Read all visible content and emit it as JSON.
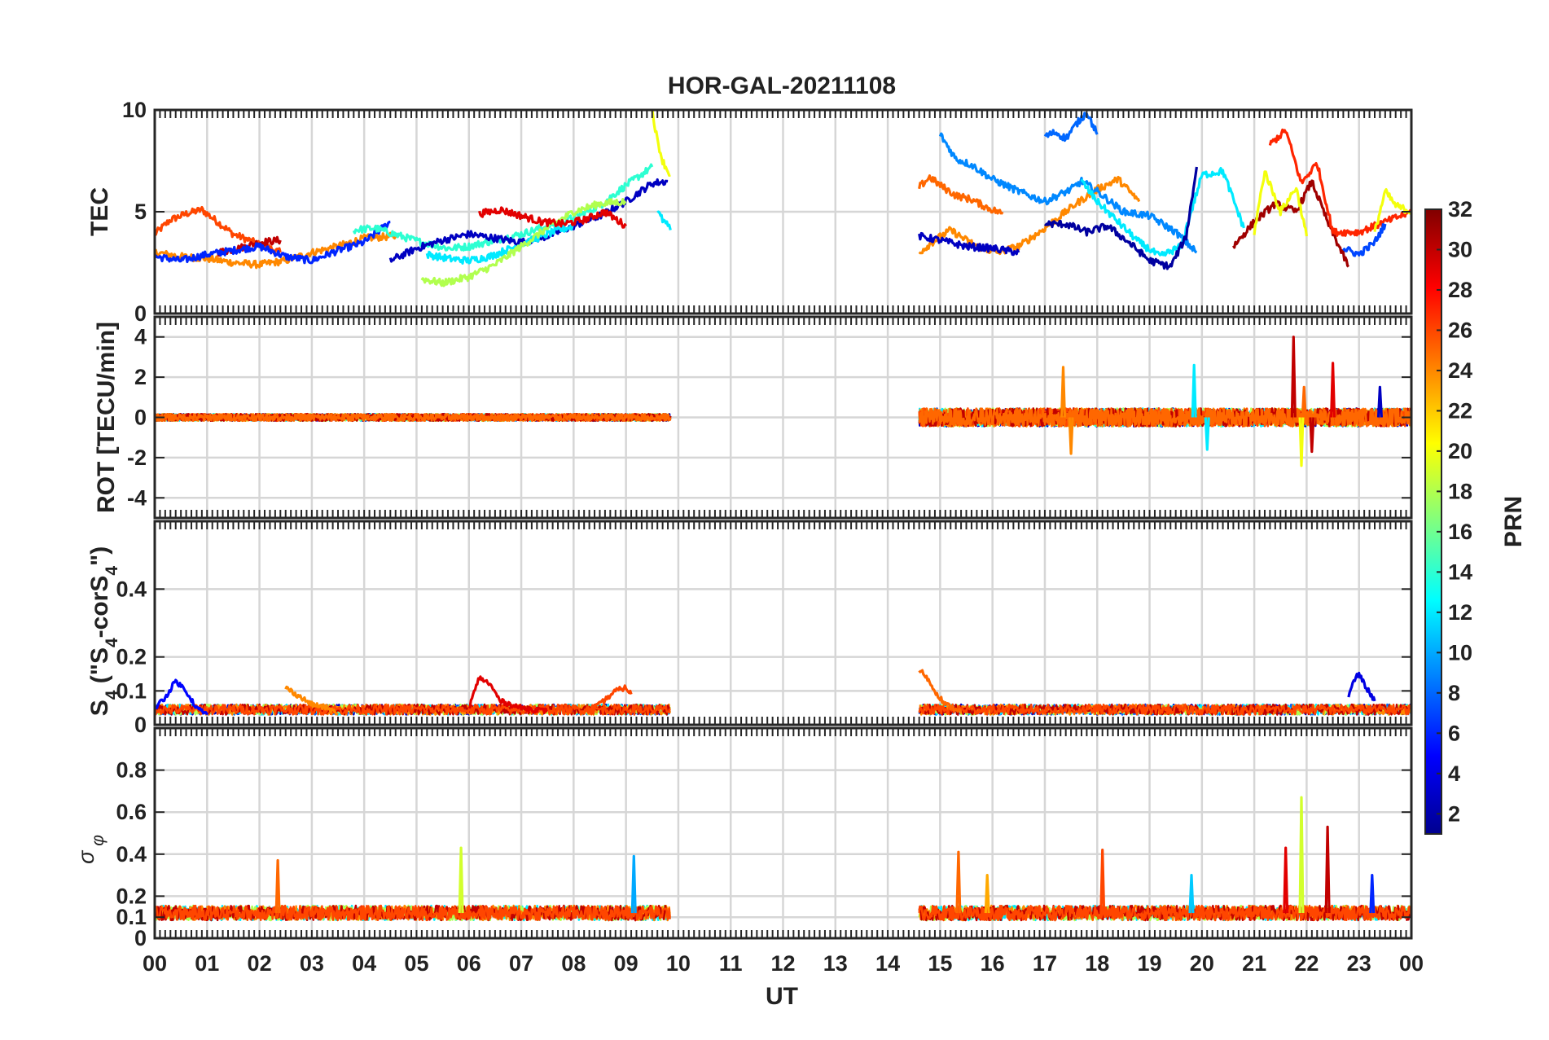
{
  "chart_data": {
    "type": "line",
    "title": "HOR-GAL-20211108",
    "xlabel": "UT",
    "x_ticks": [
      "00",
      "01",
      "02",
      "03",
      "04",
      "05",
      "06",
      "07",
      "08",
      "09",
      "10",
      "11",
      "12",
      "13",
      "14",
      "15",
      "16",
      "17",
      "18",
      "19",
      "20",
      "21",
      "22",
      "23",
      "00"
    ],
    "xlim": [
      0,
      24
    ],
    "grid": true,
    "colorbar": {
      "label": "PRN",
      "range": [
        1,
        32
      ],
      "ticks": [
        "2",
        "4",
        "6",
        "8",
        "10",
        "12",
        "14",
        "16",
        "18",
        "20",
        "22",
        "24",
        "26",
        "28",
        "30",
        "32"
      ],
      "colormap": "jet"
    },
    "panels": [
      {
        "ylabel": "TEC",
        "ylim": [
          0,
          10
        ],
        "y_ticks": [
          "0",
          "5",
          "10"
        ],
        "series": [
          {
            "prn": 26,
            "x": [
              0.0,
              0.3,
              0.6,
              0.9,
              1.2,
              1.5,
              1.8,
              2.1,
              2.4
            ],
            "y": [
              3.9,
              4.6,
              4.9,
              5.1,
              4.5,
              3.9,
              3.6,
              3.3,
              3.0
            ]
          },
          {
            "prn": 24,
            "x": [
              0.0,
              0.5,
              1.0,
              1.5,
              2.0,
              2.5,
              3.0,
              3.5,
              4.0,
              4.6
            ],
            "y": [
              3.0,
              2.8,
              2.7,
              2.5,
              2.4,
              2.6,
              3.0,
              3.3,
              3.7,
              3.8
            ]
          },
          {
            "prn": 30,
            "x": [
              1.2,
              1.6,
              2.0,
              2.4
            ],
            "y": [
              3.0,
              3.2,
              3.5,
              3.6
            ]
          },
          {
            "prn": 6,
            "x": [
              0.0,
              0.5,
              1.0,
              1.5,
              2.0,
              2.5,
              3.0,
              3.5,
              4.0,
              4.5
            ],
            "y": [
              2.8,
              2.6,
              2.9,
              3.1,
              3.3,
              2.8,
              2.6,
              3.1,
              3.5,
              4.5
            ]
          },
          {
            "prn": 14,
            "x": [
              3.8,
              4.2,
              4.7,
              5.1,
              5.6,
              6.0,
              6.5,
              7.0,
              7.5,
              8.0,
              8.5,
              9.0,
              9.5
            ],
            "y": [
              4.1,
              4.2,
              3.8,
              3.5,
              3.2,
              3.3,
              3.6,
              3.9,
              4.3,
              4.7,
              5.3,
              6.3,
              7.2
            ]
          },
          {
            "prn": 3,
            "x": [
              4.5,
              5.0,
              5.5,
              6.0,
              6.5,
              7.0,
              7.5,
              8.0,
              8.5,
              9.0,
              9.5,
              9.8
            ],
            "y": [
              2.6,
              3.2,
              3.6,
              3.9,
              3.7,
              3.5,
              3.8,
              4.3,
              4.8,
              5.5,
              6.4,
              6.5
            ]
          },
          {
            "prn": 12,
            "x": [
              5.2,
              5.6,
              6.0,
              6.4,
              6.8,
              7.2,
              7.6,
              8.0
            ],
            "y": [
              2.9,
              2.7,
              2.6,
              2.8,
              3.2,
              3.6,
              4.0,
              4.3
            ]
          },
          {
            "prn": 18,
            "x": [
              5.1,
              5.5,
              6.0,
              6.5,
              7.0,
              7.5,
              8.0,
              8.5,
              9.0
            ],
            "y": [
              1.7,
              1.5,
              1.8,
              2.4,
              3.3,
              4.2,
              5.0,
              5.4,
              5.5
            ]
          },
          {
            "prn": 29,
            "x": [
              6.2,
              6.6,
              7.0,
              7.4,
              7.8,
              8.2,
              8.6,
              9.0
            ],
            "y": [
              4.9,
              5.1,
              4.8,
              4.5,
              4.4,
              4.6,
              5.0,
              4.3
            ]
          },
          {
            "prn": 20,
            "x": [
              9.5,
              9.6,
              9.7,
              9.8,
              9.85
            ],
            "y": [
              10.0,
              8.5,
              7.5,
              7.0,
              6.8
            ]
          },
          {
            "prn": 12,
            "x": [
              9.6,
              9.7,
              9.8,
              9.85
            ],
            "y": [
              5.0,
              4.6,
              4.3,
              4.1
            ]
          },
          {
            "prn": 25,
            "x": [
              14.6,
              14.8,
              15.0,
              15.3,
              15.6,
              15.9,
              16.2
            ],
            "y": [
              6.2,
              6.7,
              6.3,
              5.8,
              5.6,
              5.2,
              4.9
            ]
          },
          {
            "prn": 24,
            "x": [
              14.6,
              14.9,
              15.2,
              15.5,
              15.8,
              16.1,
              16.5,
              16.9,
              17.3,
              17.6,
              18.0,
              18.4,
              18.8
            ],
            "y": [
              3.0,
              3.6,
              4.1,
              3.6,
              3.2,
              3.0,
              3.3,
              4.0,
              4.8,
              5.4,
              6.1,
              6.6,
              5.5
            ]
          },
          {
            "prn": 9,
            "x": [
              15.0,
              15.3,
              15.6,
              16.0,
              16.5,
              17.0,
              17.5,
              17.7,
              18.0,
              18.5,
              19.0,
              19.5,
              19.9
            ],
            "y": [
              8.8,
              7.6,
              7.3,
              6.6,
              6.0,
              5.5,
              6.1,
              6.5,
              6.0,
              5.0,
              4.8,
              4.0,
              3.0
            ]
          },
          {
            "prn": 8,
            "x": [
              17.0,
              17.2,
              17.4,
              17.6,
              17.8,
              18.0
            ],
            "y": [
              8.7,
              8.9,
              8.6,
              9.3,
              9.9,
              8.8
            ]
          },
          {
            "prn": 3,
            "x": [
              14.6,
              15.0,
              15.5,
              16.0,
              16.5
            ],
            "y": [
              3.8,
              3.6,
              3.3,
              3.2,
              3.0
            ]
          },
          {
            "prn": 12,
            "x": [
              17.7,
              18.0,
              18.4,
              18.8,
              19.2,
              19.6,
              20.0,
              20.4,
              20.8
            ],
            "y": [
              6.5,
              5.5,
              4.5,
              3.5,
              2.8,
              3.3,
              6.8,
              7.0,
              4.2
            ]
          },
          {
            "prn": 2,
            "x": [
              17.0,
              17.4,
              17.8,
              18.2,
              18.6,
              19.0,
              19.4,
              19.7,
              19.9
            ],
            "y": [
              4.4,
              4.4,
              4.0,
              4.3,
              3.5,
              2.6,
              2.3,
              3.8,
              7.2
            ]
          },
          {
            "prn": 31,
            "x": [
              20.6,
              21.0,
              21.4,
              21.8,
              22.1,
              22.4,
              22.8
            ],
            "y": [
              3.3,
              4.5,
              5.4,
              5.0,
              6.5,
              4.5,
              2.3
            ]
          },
          {
            "prn": 27,
            "x": [
              21.3,
              21.6,
              21.9,
              22.2,
              22.5,
              23.0,
              23.5,
              24.0
            ],
            "y": [
              8.3,
              9.0,
              6.4,
              7.4,
              4.0,
              4.0,
              4.5,
              5.0
            ]
          },
          {
            "prn": 20,
            "x": [
              21.0,
              21.2,
              21.5,
              21.8,
              22.0
            ],
            "y": [
              4.0,
              7.0,
              5.0,
              6.2,
              3.8
            ]
          },
          {
            "prn": 20,
            "x": [
              23.3,
              23.5,
              23.7,
              24.0
            ],
            "y": [
              4.0,
              6.0,
              5.3,
              5.0
            ]
          },
          {
            "prn": 7,
            "x": [
              22.7,
              23.0,
              23.3,
              23.5
            ],
            "y": [
              3.2,
              2.9,
              3.5,
              4.4
            ]
          }
        ]
      },
      {
        "ylabel": "ROT [TECU/min]",
        "ylim": [
          -5,
          5
        ],
        "y_ticks": [
          "-4",
          "-2",
          "0",
          "2",
          "4"
        ],
        "segments": [
          [
            0.0,
            9.85
          ],
          [
            14.6,
            24.0
          ]
        ],
        "noise_amplitude": 0.3,
        "spikes": [
          {
            "prn": 24,
            "x": 17.35,
            "y": 2.5
          },
          {
            "prn": 24,
            "x": 17.5,
            "y": -1.8
          },
          {
            "prn": 12,
            "x": 19.85,
            "y": 2.6
          },
          {
            "prn": 12,
            "x": 20.1,
            "y": -1.6
          },
          {
            "prn": 30,
            "x": 21.75,
            "y": 4.0
          },
          {
            "prn": 30,
            "x": 22.1,
            "y": -1.7
          },
          {
            "prn": 20,
            "x": 21.9,
            "y": -2.4
          },
          {
            "prn": 25,
            "x": 21.95,
            "y": 1.5
          },
          {
            "prn": 29,
            "x": 22.5,
            "y": 2.7
          },
          {
            "prn": 3,
            "x": 23.4,
            "y": 1.5
          }
        ]
      },
      {
        "ylabel": "S4 (\"S4-corS4\")",
        "ylim": [
          0,
          0.6
        ],
        "y_ticks": [
          "0",
          "0.1",
          "0.2",
          "0.4"
        ],
        "series": [
          {
            "prn": 5,
            "x": [
              0.0,
              0.2,
              0.4,
              0.6,
              0.8,
              1.0
            ],
            "y": [
              0.05,
              0.08,
              0.13,
              0.1,
              0.05,
              0.03
            ]
          },
          {
            "prn": 24,
            "x": [
              2.5,
              2.7,
              3.0,
              3.3,
              3.5
            ],
            "y": [
              0.11,
              0.09,
              0.06,
              0.05,
              0.03
            ]
          },
          {
            "prn": 29,
            "x": [
              6.0,
              6.2,
              6.4,
              6.6,
              7.0,
              7.5
            ],
            "y": [
              0.05,
              0.14,
              0.12,
              0.07,
              0.05,
              0.04
            ]
          },
          {
            "prn": 26,
            "x": [
              8.2,
              8.5,
              8.8,
              9.0,
              9.1
            ],
            "y": [
              0.04,
              0.06,
              0.1,
              0.11,
              0.09
            ]
          },
          {
            "prn": 25,
            "x": [
              14.6,
              14.7,
              14.9,
              15.1,
              15.4
            ],
            "y": [
              0.16,
              0.15,
              0.1,
              0.06,
              0.04
            ]
          },
          {
            "prn": 4,
            "x": [
              22.8,
              22.9,
              23.0,
              23.1,
              23.3
            ],
            "y": [
              0.08,
              0.13,
              0.15,
              0.12,
              0.07
            ]
          }
        ],
        "baseline_min": 0.03
      },
      {
        "ylabel": "σ φ",
        "ylim": [
          0,
          1
        ],
        "y_ticks": [
          "0",
          "0.1",
          "0.2",
          "0.4",
          "0.6",
          "0.8"
        ],
        "segments": [
          [
            0.0,
            9.85
          ],
          [
            14.6,
            24.0
          ]
        ],
        "baseline": 0.12,
        "spikes": [
          {
            "prn": 25,
            "x": 2.35,
            "y": 0.37
          },
          {
            "prn": 19,
            "x": 5.85,
            "y": 0.43
          },
          {
            "prn": 10,
            "x": 9.15,
            "y": 0.39
          },
          {
            "prn": 25,
            "x": 15.35,
            "y": 0.41
          },
          {
            "prn": 23,
            "x": 15.9,
            "y": 0.3
          },
          {
            "prn": 26,
            "x": 18.1,
            "y": 0.42
          },
          {
            "prn": 11,
            "x": 19.8,
            "y": 0.3
          },
          {
            "prn": 29,
            "x": 21.6,
            "y": 0.43
          },
          {
            "prn": 19,
            "x": 21.9,
            "y": 0.67
          },
          {
            "prn": 30,
            "x": 22.4,
            "y": 0.53
          },
          {
            "prn": 6,
            "x": 23.25,
            "y": 0.3
          }
        ]
      }
    ]
  }
}
